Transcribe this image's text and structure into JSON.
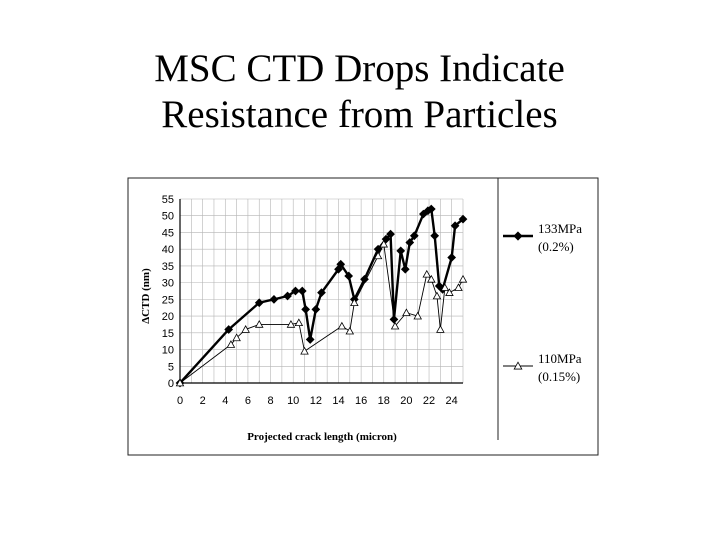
{
  "slide": {
    "title_line1": "MSC CTD Drops Indicate",
    "title_line2": "Resistance from Particles"
  },
  "chart_data": {
    "type": "line",
    "xlabel": "Projected crack length (micron)",
    "ylabel": "ΔCTD (nm)",
    "xlim": [
      0,
      25
    ],
    "ylim": [
      0,
      55
    ],
    "xticks": [
      "0",
      "2",
      "4",
      "6",
      "8",
      "10",
      "12",
      "14",
      "16",
      "18",
      "20",
      "22",
      "24"
    ],
    "yticks": [
      "0",
      "5",
      "10",
      "15",
      "20",
      "25",
      "30",
      "35",
      "40",
      "45",
      "50",
      "55"
    ],
    "grid": true,
    "legend_position": "right",
    "series": [
      {
        "name": "133MPa",
        "note": "(0.2%)",
        "marker": "diamond",
        "x": [
          0,
          4.3,
          7,
          8.3,
          9.5,
          10.2,
          10.8,
          11.1,
          11.5,
          12,
          12.5,
          14,
          14.2,
          14.9,
          15.4,
          16.3,
          17.5,
          18.2,
          18.6,
          18.9,
          19.5,
          19.9,
          20.3,
          20.7,
          21.5,
          21.9,
          22.2,
          22.5,
          22.9,
          23.2,
          24,
          24.3,
          25
        ],
        "y": [
          0,
          16,
          24,
          25,
          26,
          27.5,
          27.5,
          22,
          13,
          22,
          27,
          34,
          35.5,
          32,
          25,
          31,
          40,
          43,
          44.5,
          19,
          39.5,
          34,
          42,
          44,
          50.5,
          51.5,
          52,
          44,
          29,
          28,
          37.5,
          47,
          49
        ]
      },
      {
        "name": "110MPa",
        "note": "(0.15%)",
        "marker": "triangle",
        "x": [
          0,
          4.5,
          5,
          5.8,
          7,
          9.8,
          10.5,
          11,
          14.3,
          15,
          15.4,
          17.5,
          18,
          19,
          20,
          21,
          21.8,
          22.2,
          22.7,
          23,
          23.4,
          23.8,
          24.6,
          25
        ],
        "y": [
          0,
          11.5,
          13.5,
          16,
          17.5,
          17.5,
          18,
          9.5,
          17,
          15.5,
          24,
          38,
          41.5,
          17,
          21,
          20,
          32.5,
          31,
          26,
          16,
          28.5,
          27,
          28.5,
          31
        ]
      }
    ]
  }
}
